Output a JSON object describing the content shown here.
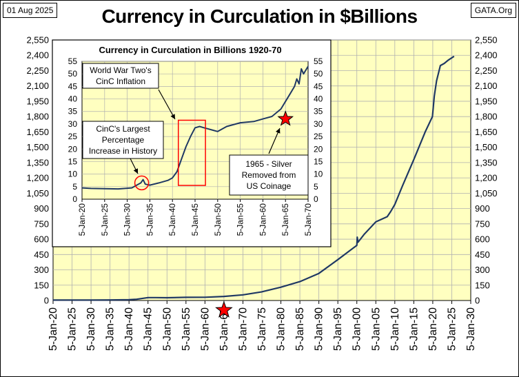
{
  "header": {
    "date": "01 Aug 2025",
    "source": "GATA.Org",
    "title": "Currency in Curculation in $Billions"
  },
  "colors": {
    "plot_bg": "#ffffc0",
    "line": "#1f3864",
    "grid": "#b0b0b0",
    "highlight_box": "#ff0000",
    "star": "#ff0000"
  },
  "chart_data": [
    {
      "type": "line",
      "title": "Currency in Curculation in $Billions",
      "ylim": [
        0,
        2550
      ],
      "y_ticks": [
        "0",
        "150",
        "300",
        "450",
        "600",
        "750",
        "900",
        "1,050",
        "1,200",
        "1,350",
        "1,500",
        "1,650",
        "1,800",
        "1,950",
        "2,100",
        "2,250",
        "2,400",
        "2,550"
      ],
      "x_ticks": [
        "5-Jan-20",
        "5-Jan-25",
        "5-Jan-30",
        "5-Jan-35",
        "5-Jan-40",
        "5-Jan-45",
        "5-Jan-50",
        "5-Jan-55",
        "5-Jan-60",
        "5-Jan-65",
        "5-Jan-70",
        "5-Jan-75",
        "5-Jan-80",
        "5-Jan-85",
        "5-Jan-90",
        "5-Jan-95",
        "5-Jan-00",
        "5-Jan-05",
        "5-Jan-10",
        "5-Jan-15",
        "5-Jan-20",
        "5-Jan-25",
        "5-Jan-30"
      ],
      "xlim": [
        1920,
        2030
      ],
      "grid": true,
      "marker": {
        "label": "1965",
        "x": 1965,
        "y": 0
      },
      "series": [
        {
          "x": [
            1920,
            1925,
            1930,
            1935,
            1940,
            1942,
            1945,
            1947,
            1950,
            1955,
            1960,
            1965,
            1970,
            1975,
            1980,
            1985,
            1990,
            1995,
            2000,
            2000.1,
            2000.3,
            2002,
            2005,
            2008,
            2008.9,
            2010,
            2012,
            2015,
            2018,
            2019.9,
            2020.4,
            2021,
            2022,
            2023,
            2024,
            2025.6
          ],
          "y": [
            4.5,
            4.8,
            4.5,
            5.5,
            7.8,
            12,
            28,
            28.5,
            27,
            31,
            32,
            40,
            55,
            85,
            130,
            185,
            265,
            400,
            540,
            620,
            570,
            650,
            770,
            820,
            870,
            940,
            1120,
            1380,
            1650,
            1800,
            2000,
            2150,
            2300,
            2320,
            2350,
            2390
          ]
        }
      ]
    },
    {
      "type": "line",
      "title": "Currency in Curculation in Billions 1920-70",
      "ylim": [
        0,
        55
      ],
      "y_ticks": [
        "0",
        "5",
        "10",
        "15",
        "20",
        "25",
        "30",
        "35",
        "40",
        "45",
        "50",
        "55"
      ],
      "x_ticks": [
        "5-Jan-20",
        "5-Jan-25",
        "5-Jan-30",
        "5-Jan-35",
        "5-Jan-40",
        "5-Jan-45",
        "5-Jan-50",
        "5-Jan-55",
        "5-Jan-60",
        "5-Jan-65",
        "5-Jan-70"
      ],
      "xlim": [
        1920,
        1970
      ],
      "grid": true,
      "series": [
        {
          "x": [
            1920,
            1922,
            1925,
            1928,
            1931,
            1932,
            1933,
            1933.5,
            1934,
            1935,
            1937,
            1939,
            1940,
            1941,
            1942,
            1943,
            1944,
            1945,
            1946,
            1947,
            1948,
            1949,
            1950,
            1952,
            1955,
            1958,
            1960,
            1962,
            1964,
            1965,
            1966,
            1967,
            1967.5,
            1968,
            1968.5,
            1969,
            1970
          ],
          "y": [
            4.5,
            4.3,
            4.2,
            4.1,
            4.5,
            5.5,
            6.5,
            7.8,
            6,
            5.6,
            6.5,
            7.5,
            8.5,
            11,
            16,
            21,
            25,
            28.5,
            29,
            28.5,
            28,
            27.5,
            27,
            29,
            30.5,
            31,
            32,
            33,
            36,
            39,
            42,
            45,
            48,
            46,
            52,
            50,
            53
          ]
        }
      ],
      "annotations": [
        {
          "id": "ww2",
          "lines": [
            "World War Two's",
            "CinC Inflation"
          ]
        },
        {
          "id": "largest",
          "lines": [
            "CinC's Largest",
            "Percentage",
            "Increase in History"
          ]
        },
        {
          "id": "silver",
          "lines": [
            "1965 - Silver",
            "Removed from",
            "US Coinage"
          ]
        }
      ],
      "marker": {
        "label": "1965",
        "x": 1965,
        "y": 32
      }
    }
  ]
}
